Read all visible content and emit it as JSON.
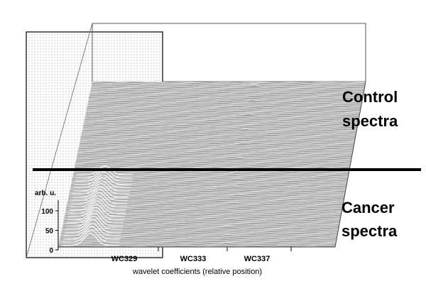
{
  "chart_data": {
    "type": "area",
    "chart_style": "3d waterfall of stacked spectra",
    "y_axis_label": "arb. u.",
    "y_ticks": [
      0,
      50,
      100
    ],
    "x_ticks": [
      "WC329",
      "WC333",
      "WC337"
    ],
    "x_axis_label": "wavelet coefficients (relative position)",
    "groups": [
      {
        "label_lines": [
          "Control",
          "spectra"
        ],
        "spectra_count": 58,
        "peak_height_arb": 4
      },
      {
        "label_lines": [
          "Cancer",
          "spectra"
        ],
        "spectra_count": 46,
        "peak_height_arb": 95
      }
    ],
    "highlight_region": "WC329",
    "colors": {
      "surface": "#a6a6a6",
      "trace": "#f4f4f4",
      "divider": "#000000",
      "panel_dots": "#7c7c7c",
      "frame": "#222222"
    }
  }
}
